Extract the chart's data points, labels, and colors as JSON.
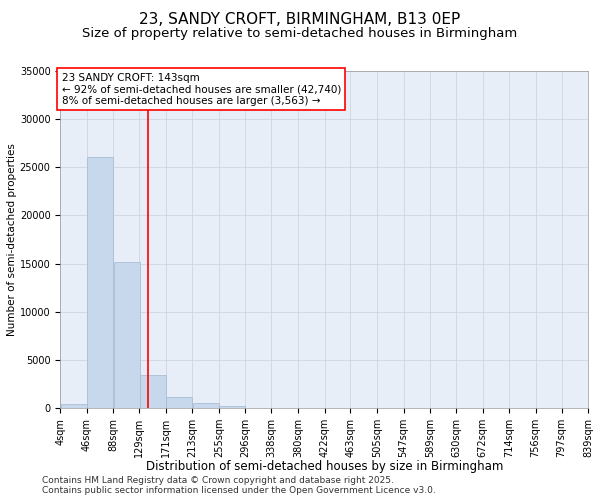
{
  "title": "23, SANDY CROFT, BIRMINGHAM, B13 0EP",
  "subtitle": "Size of property relative to semi-detached houses in Birmingham",
  "xlabel": "Distribution of semi-detached houses by size in Birmingham",
  "ylabel": "Number of semi-detached properties",
  "footnote1": "Contains HM Land Registry data © Crown copyright and database right 2025.",
  "footnote2": "Contains public sector information licensed under the Open Government Licence v3.0.",
  "annotation_line1": "23 SANDY CROFT: 143sqm",
  "annotation_line2": "← 92% of semi-detached houses are smaller (42,740)",
  "annotation_line3": "8% of semi-detached houses are larger (3,563) →",
  "property_size": 143,
  "bins": [
    4,
    46,
    88,
    129,
    171,
    213,
    255,
    296,
    338,
    380,
    422,
    463,
    505,
    547,
    589,
    630,
    672,
    714,
    756,
    797,
    839
  ],
  "bin_labels": [
    "4sqm",
    "46sqm",
    "88sqm",
    "129sqm",
    "171sqm",
    "213sqm",
    "255sqm",
    "296sqm",
    "338sqm",
    "380sqm",
    "422sqm",
    "463sqm",
    "505sqm",
    "547sqm",
    "589sqm",
    "630sqm",
    "672sqm",
    "714sqm",
    "756sqm",
    "797sqm",
    "839sqm"
  ],
  "values": [
    400,
    26100,
    15200,
    3400,
    1100,
    500,
    200,
    50,
    20,
    10,
    5,
    3,
    2,
    1,
    0,
    0,
    0,
    0,
    0,
    0
  ],
  "bar_color": "#c8d8ec",
  "bar_edge_color": "#a0b8d0",
  "vline_color": "red",
  "vline_x": 143,
  "ylim": [
    0,
    35000
  ],
  "yticks": [
    0,
    5000,
    10000,
    15000,
    20000,
    25000,
    30000,
    35000
  ],
  "background_color": "#ffffff",
  "plot_bg_color": "#e8eef8",
  "grid_color": "#c8d0e0",
  "title_fontsize": 11,
  "subtitle_fontsize": 9.5,
  "xlabel_fontsize": 8.5,
  "ylabel_fontsize": 7.5,
  "tick_fontsize": 7,
  "annotation_fontsize": 7.5,
  "footnote_fontsize": 6.5
}
